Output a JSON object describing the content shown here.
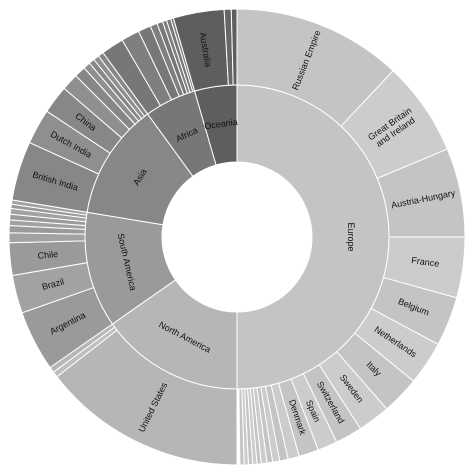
{
  "chart_data": {
    "type": "sunburst",
    "title": "",
    "units": "share of total (%)",
    "colors": {
      "Europe": "#c4c4c4",
      "North America": "#b6b6b6",
      "South America": "#9a9a9a",
      "Asia": "#878787",
      "Africa": "#777777",
      "Oceania": "#5e5e5e"
    },
    "continents": [
      {
        "name": "Europe",
        "value": 50.0,
        "countries": [
          {
            "name": "Russian Empire",
            "value": 12.0
          },
          {
            "name": "Great Britain and Ireland",
            "value": 6.7
          },
          {
            "name": "Austria-Hungary",
            "value": 6.3
          },
          {
            "name": "France",
            "value": 4.3
          },
          {
            "name": "Belgium",
            "value": 3.5
          },
          {
            "name": "Netherlands",
            "value": 3.1
          },
          {
            "name": "Italy",
            "value": 2.7
          },
          {
            "name": "Sweden",
            "value": 2.3
          },
          {
            "name": "Switzerland",
            "value": 1.9
          },
          {
            "name": "Spain",
            "value": 1.4
          },
          {
            "name": "Denmark",
            "value": 1.4
          },
          {
            "name": "",
            "value": 0.8
          },
          {
            "name": "",
            "value": 0.6
          },
          {
            "name": "",
            "value": 0.5
          },
          {
            "name": "",
            "value": 0.4
          },
          {
            "name": "",
            "value": 0.4
          },
          {
            "name": "",
            "value": 0.3
          },
          {
            "name": "",
            "value": 0.3
          },
          {
            "name": "",
            "value": 0.3
          },
          {
            "name": "",
            "value": 0.3
          },
          {
            "name": "",
            "value": 0.3
          }
        ]
      },
      {
        "name": "North America",
        "value": 15.3,
        "countries": [
          {
            "name": "United States",
            "value": 14.5
          },
          {
            "name": "",
            "value": 0.4
          },
          {
            "name": "",
            "value": 0.4
          }
        ]
      },
      {
        "name": "South America",
        "value": 12.3,
        "countries": [
          {
            "name": "Argentina",
            "value": 4.3
          },
          {
            "name": "Brazil",
            "value": 2.7
          },
          {
            "name": "Chile",
            "value": 2.3
          },
          {
            "name": "",
            "value": 0.7
          },
          {
            "name": "",
            "value": 0.5
          },
          {
            "name": "",
            "value": 0.4
          },
          {
            "name": "",
            "value": 0.4
          },
          {
            "name": "",
            "value": 0.4
          },
          {
            "name": "",
            "value": 0.3
          },
          {
            "name": "",
            "value": 0.3
          }
        ]
      },
      {
        "name": "Asia",
        "value": 12.4,
        "countries": [
          {
            "name": "British India",
            "value": 4.2
          },
          {
            "name": "Dutch India",
            "value": 2.5
          },
          {
            "name": "China",
            "value": 2.0
          },
          {
            "name": "",
            "value": 1.2
          },
          {
            "name": "",
            "value": 0.8
          },
          {
            "name": "",
            "value": 0.5
          },
          {
            "name": "",
            "value": 0.4
          },
          {
            "name": "",
            "value": 0.4
          },
          {
            "name": "",
            "value": 0.4
          }
        ]
      },
      {
        "name": "Africa",
        "value": 5.5,
        "countries": [
          {
            "name": "",
            "value": 1.6
          },
          {
            "name": "",
            "value": 1.3
          },
          {
            "name": "",
            "value": 0.9
          },
          {
            "name": "",
            "value": 0.5
          },
          {
            "name": "",
            "value": 0.4
          },
          {
            "name": "",
            "value": 0.3
          },
          {
            "name": "",
            "value": 0.3
          },
          {
            "name": "",
            "value": 0.2
          }
        ]
      },
      {
        "name": "Oceania",
        "value": 4.5,
        "countries": [
          {
            "name": "Australia",
            "value": 3.6
          },
          {
            "name": "",
            "value": 0.5
          },
          {
            "name": "",
            "value": 0.4
          }
        ]
      }
    ]
  }
}
